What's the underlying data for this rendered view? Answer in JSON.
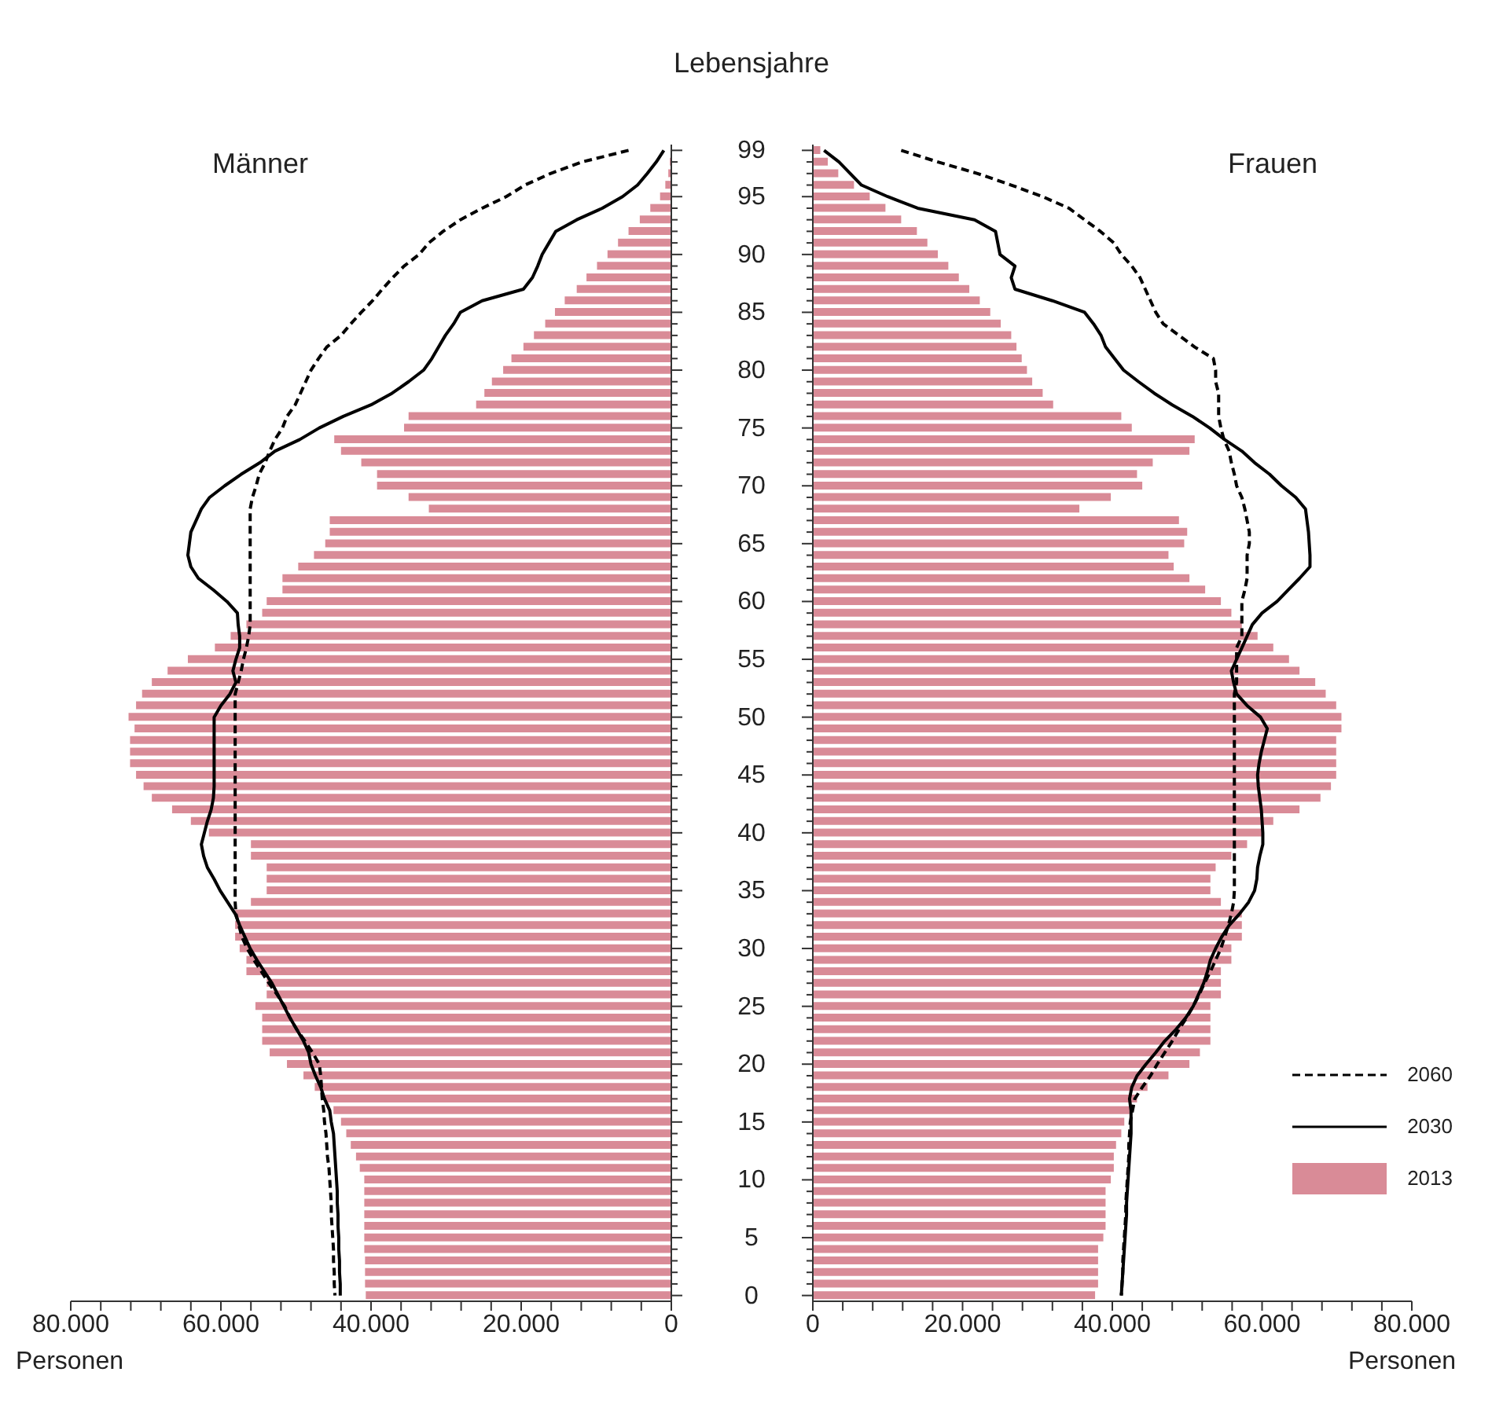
{
  "chart_data": [
    {
      "type": "bar",
      "orientation": "horizontal",
      "title": "Männer",
      "xlabel": "Personen",
      "tick_labels": "x",
      "marker": "none",
      "categories": [
        "99",
        null,
        null,
        null,
        "95",
        null,
        null,
        null,
        null,
        "90",
        null,
        null,
        null,
        null,
        "85",
        null,
        null,
        null,
        null,
        "80",
        null,
        null,
        null,
        null,
        "75",
        null,
        null,
        null,
        null,
        "70",
        null,
        null,
        null,
        null,
        "65",
        null,
        null,
        null,
        null,
        "60",
        null,
        null,
        null,
        null,
        "55",
        null,
        null,
        null,
        null,
        "50",
        null,
        null,
        null,
        null,
        "45",
        null,
        null,
        null,
        null,
        "40",
        null,
        null,
        null,
        null,
        "35",
        null,
        null,
        null,
        null,
        "30",
        null,
        null,
        null,
        null,
        "25",
        null,
        null,
        null,
        null,
        "20",
        null,
        null,
        null,
        null,
        "15",
        null,
        null,
        null,
        null,
        "10",
        null,
        null,
        null,
        null,
        "5",
        null,
        null,
        null,
        null,
        "0"
      ],
      "xlim": [
        80000,
        0
      ],
      "xticks": [
        {
          "value": 80000,
          "label": "80.000"
        },
        {
          "value": 76000,
          "label": null
        },
        {
          "value": 72000,
          "label": null
        },
        {
          "value": 68000,
          "label": null
        },
        {
          "value": 64000,
          "label": null
        },
        {
          "value": 60000,
          "label": "60.000"
        },
        {
          "value": 56000,
          "label": null
        },
        {
          "value": 52000,
          "label": null
        },
        {
          "value": 48000,
          "label": null
        },
        {
          "value": 44000,
          "label": null
        },
        {
          "value": 40000,
          "label": "40.000"
        },
        {
          "value": 36000,
          "label": null
        },
        {
          "value": 32000,
          "label": null
        },
        {
          "value": 28000,
          "label": null
        },
        {
          "value": 24000,
          "label": null
        },
        {
          "value": 20000,
          "label": "20.000"
        },
        {
          "value": 16000,
          "label": null
        },
        {
          "value": 12000,
          "label": null
        },
        {
          "value": 8000,
          "label": null
        },
        {
          "value": 4000,
          "label": null
        },
        0
      ],
      "series": [
        {
          "color": "#d98b97",
          "values": [
            100,
            200,
            400,
            800,
            1500,
            2800,
            4200,
            5700,
            7100,
            8500,
            9900,
            11300,
            12600,
            14200,
            15500,
            16800,
            18300,
            19700,
            21300,
            22400,
            23900,
            24900,
            26000,
            35000,
            35600,
            44900,
            44000,
            41300,
            39200,
            39200,
            35000,
            32300,
            45500,
            45500,
            46100,
            47600,
            49700,
            51800,
            51800,
            53900,
            54500,
            56600,
            58700,
            60800,
            64400,
            67100,
            69200,
            70500,
            71300,
            72300,
            71500,
            72100,
            72100,
            72100,
            71300,
            70300,
            69200,
            66500,
            64000,
            61600,
            56000,
            56000,
            53900,
            53900,
            53900,
            56000,
            58100,
            58100,
            58100,
            57500,
            56600,
            56600,
            53900,
            53900,
            55400,
            54500,
            54500,
            54500,
            53500,
            51200,
            49000,
            47500,
            46100,
            45000,
            44000,
            43300,
            42700,
            42000,
            41500,
            40900,
            40900,
            40900,
            40900,
            40900,
            40900,
            40900,
            40800,
            40800,
            40800,
            40700
          ]
        },
        {
          "type": "line",
          "color": "#000000",
          "line_style": "solid",
          "values": [
            1000,
            2000,
            3200,
            4500,
            6500,
            9200,
            12600,
            15400,
            16300,
            17200,
            17800,
            18500,
            19700,
            25200,
            28100,
            29000,
            30100,
            31000,
            31900,
            33000,
            35000,
            37200,
            40000,
            43700,
            46900,
            49500,
            52800,
            54800,
            57300,
            59500,
            61500,
            62600,
            63300,
            64000,
            64200,
            64400,
            64000,
            63000,
            61000,
            59200,
            57800,
            57700,
            57500,
            57500,
            58000,
            58400,
            58000,
            58800,
            60000,
            60900,
            60900,
            60900,
            60900,
            60900,
            60900,
            60900,
            61000,
            61300,
            61800,
            62200,
            62600,
            62300,
            61800,
            60900,
            60100,
            59100,
            58100,
            57500,
            56800,
            56100,
            55200,
            54200,
            53200,
            52400,
            51600,
            50800,
            49900,
            49000,
            48300,
            48000,
            47400,
            46700,
            46200,
            45500,
            45300,
            45000,
            44900,
            44800,
            44700,
            44600,
            44500,
            44500,
            44400,
            44400,
            44300,
            44300,
            44200,
            44200,
            44100,
            44100
          ]
        },
        {
          "type": "line",
          "color": "#000000",
          "line_style": "dashed",
          "values": [
            5700,
            11900,
            16100,
            19500,
            22000,
            25200,
            28100,
            30400,
            32300,
            33600,
            35600,
            37100,
            38500,
            39800,
            41300,
            42700,
            44000,
            45900,
            47000,
            48000,
            48700,
            49400,
            50100,
            51200,
            51800,
            52800,
            53500,
            54100,
            54900,
            55300,
            55800,
            56100,
            56100,
            56100,
            56100,
            56100,
            56100,
            56100,
            56100,
            56100,
            56100,
            56100,
            56300,
            56600,
            57000,
            57300,
            57700,
            58100,
            58100,
            58100,
            58100,
            58100,
            58100,
            58100,
            58100,
            58100,
            58100,
            58100,
            58100,
            58100,
            58100,
            58100,
            58100,
            58100,
            58100,
            58100,
            58000,
            57600,
            57200,
            56500,
            55600,
            54600,
            53600,
            52500,
            51500,
            50800,
            49900,
            48800,
            47800,
            46900,
            46700,
            46600,
            46500,
            46300,
            46200,
            46000,
            45900,
            45800,
            45600,
            45500,
            45400,
            45300,
            45300,
            45200,
            45100,
            45000,
            45000,
            44900,
            44900,
            44800
          ]
        }
      ]
    },
    {
      "type": "bar",
      "orientation": "horizontal",
      "title": "Frauen",
      "xlabel": "Personen",
      "ylabel": "Lebensjahre",
      "legend": "bottom right",
      "marker": "none",
      "categories": [
        "99",
        null,
        null,
        null,
        "95",
        null,
        null,
        null,
        null,
        "90",
        null,
        null,
        null,
        null,
        "85",
        null,
        null,
        null,
        null,
        "80",
        null,
        null,
        null,
        null,
        "75",
        null,
        null,
        null,
        null,
        "70",
        null,
        null,
        null,
        null,
        "65",
        null,
        null,
        null,
        null,
        "60",
        null,
        null,
        null,
        null,
        "55",
        null,
        null,
        null,
        null,
        "50",
        null,
        null,
        null,
        null,
        "45",
        null,
        null,
        null,
        null,
        "40",
        null,
        null,
        null,
        null,
        "35",
        null,
        null,
        null,
        null,
        "30",
        null,
        null,
        null,
        null,
        "25",
        null,
        null,
        null,
        null,
        "20",
        null,
        null,
        null,
        null,
        "15",
        null,
        null,
        null,
        null,
        "10",
        null,
        null,
        null,
        null,
        "5",
        null,
        null,
        null,
        null,
        "0"
      ],
      "xlim": [
        0,
        80000
      ],
      "xticks": [
        0,
        {
          "value": 4000,
          "label": null
        },
        {
          "value": 8000,
          "label": null
        },
        {
          "value": 12000,
          "label": null
        },
        {
          "value": 16000,
          "label": null
        },
        {
          "value": 20000,
          "label": "20.000"
        },
        {
          "value": 24000,
          "label": null
        },
        {
          "value": 28000,
          "label": null
        },
        {
          "value": 32000,
          "label": null
        },
        {
          "value": 36000,
          "label": null
        },
        {
          "value": 40000,
          "label": "40.000"
        },
        {
          "value": 44000,
          "label": null
        },
        {
          "value": 48000,
          "label": null
        },
        {
          "value": 52000,
          "label": null
        },
        {
          "value": 56000,
          "label": null
        },
        {
          "value": 60000,
          "label": "60.000"
        },
        {
          "value": 64000,
          "label": null
        },
        {
          "value": 68000,
          "label": null
        },
        {
          "value": 72000,
          "label": null
        },
        {
          "value": 76000,
          "label": null
        },
        {
          "value": 80000,
          "label": "80.000"
        }
      ],
      "series": [
        {
          "name": "2013",
          "color": "#d98b97",
          "values": [
            1000,
            2000,
            3400,
            5500,
            7600,
            9700,
            11800,
            13900,
            15300,
            16700,
            18100,
            19500,
            20900,
            22300,
            23700,
            25100,
            26500,
            27200,
            27900,
            28600,
            29300,
            30700,
            32100,
            41200,
            42600,
            51000,
            50300,
            45400,
            43300,
            44000,
            39800,
            35600,
            48900,
            50000,
            49600,
            47500,
            48200,
            50300,
            52400,
            54500,
            55900,
            57300,
            59400,
            61500,
            63600,
            65000,
            67100,
            68500,
            69900,
            70600,
            70600,
            69900,
            69900,
            69900,
            69900,
            69200,
            67800,
            65000,
            61500,
            60100,
            58000,
            55900,
            53800,
            53100,
            53100,
            54500,
            57300,
            57300,
            57300,
            55900,
            55900,
            54500,
            54500,
            54500,
            53100,
            53100,
            53100,
            53100,
            51700,
            50300,
            47500,
            44700,
            43300,
            42300,
            41600,
            41200,
            40500,
            40200,
            40200,
            39800,
            39100,
            39100,
            39100,
            39100,
            38800,
            38100,
            38100,
            38100,
            38100,
            37700
          ]
        },
        {
          "name": "2030",
          "type": "line",
          "color": "#000000",
          "line_style": "solid",
          "values": [
            1500,
            3500,
            5000,
            6500,
            10000,
            14000,
            21600,
            24400,
            24700,
            25000,
            27000,
            26500,
            27000,
            32000,
            36300,
            37500,
            38500,
            39100,
            40300,
            41500,
            43500,
            45600,
            48000,
            50700,
            53000,
            55000,
            57300,
            59000,
            61000,
            62600,
            64500,
            65800,
            66000,
            66200,
            66300,
            66400,
            66400,
            65000,
            63500,
            62000,
            60000,
            58700,
            58000,
            57300,
            56600,
            55900,
            56200,
            56600,
            58000,
            59800,
            60700,
            60300,
            59900,
            59600,
            59400,
            59500,
            59700,
            59900,
            60000,
            60100,
            60100,
            59700,
            59400,
            59300,
            59000,
            58200,
            57000,
            55600,
            54600,
            53800,
            53100,
            52700,
            52200,
            51500,
            50800,
            49800,
            48500,
            47000,
            45800,
            44500,
            43300,
            42600,
            42300,
            42500,
            42500,
            42500,
            42400,
            42300,
            42200,
            42100,
            42000,
            41900,
            41900,
            41800,
            41700,
            41600,
            41500,
            41400,
            41300,
            41200
          ]
        },
        {
          "name": "2060",
          "type": "line",
          "color": "#000000",
          "line_style": "dashed",
          "values": [
            11800,
            16700,
            22000,
            26500,
            30700,
            34200,
            36300,
            38400,
            40200,
            41200,
            42600,
            43700,
            44400,
            45100,
            45800,
            46800,
            48900,
            51000,
            53500,
            53800,
            53800,
            54200,
            54200,
            54200,
            54500,
            54900,
            55600,
            55900,
            56300,
            56600,
            57300,
            57700,
            58000,
            58300,
            58300,
            58000,
            58000,
            58000,
            57700,
            57300,
            57300,
            57300,
            57300,
            56600,
            56600,
            56600,
            56600,
            56300,
            56300,
            56300,
            56300,
            56300,
            56300,
            56300,
            56300,
            56300,
            56300,
            56300,
            56300,
            56300,
            56300,
            56300,
            56300,
            56300,
            56300,
            56200,
            55900,
            55500,
            55000,
            54500,
            53800,
            53100,
            52300,
            51600,
            50800,
            49900,
            48900,
            48000,
            47000,
            46000,
            45100,
            44000,
            43000,
            42700,
            42400,
            42300,
            42200,
            42200,
            42100,
            42000,
            41900,
            41800,
            41800,
            41700,
            41600,
            41500,
            41400,
            41400,
            41300,
            41200
          ]
        }
      ]
    }
  ]
}
